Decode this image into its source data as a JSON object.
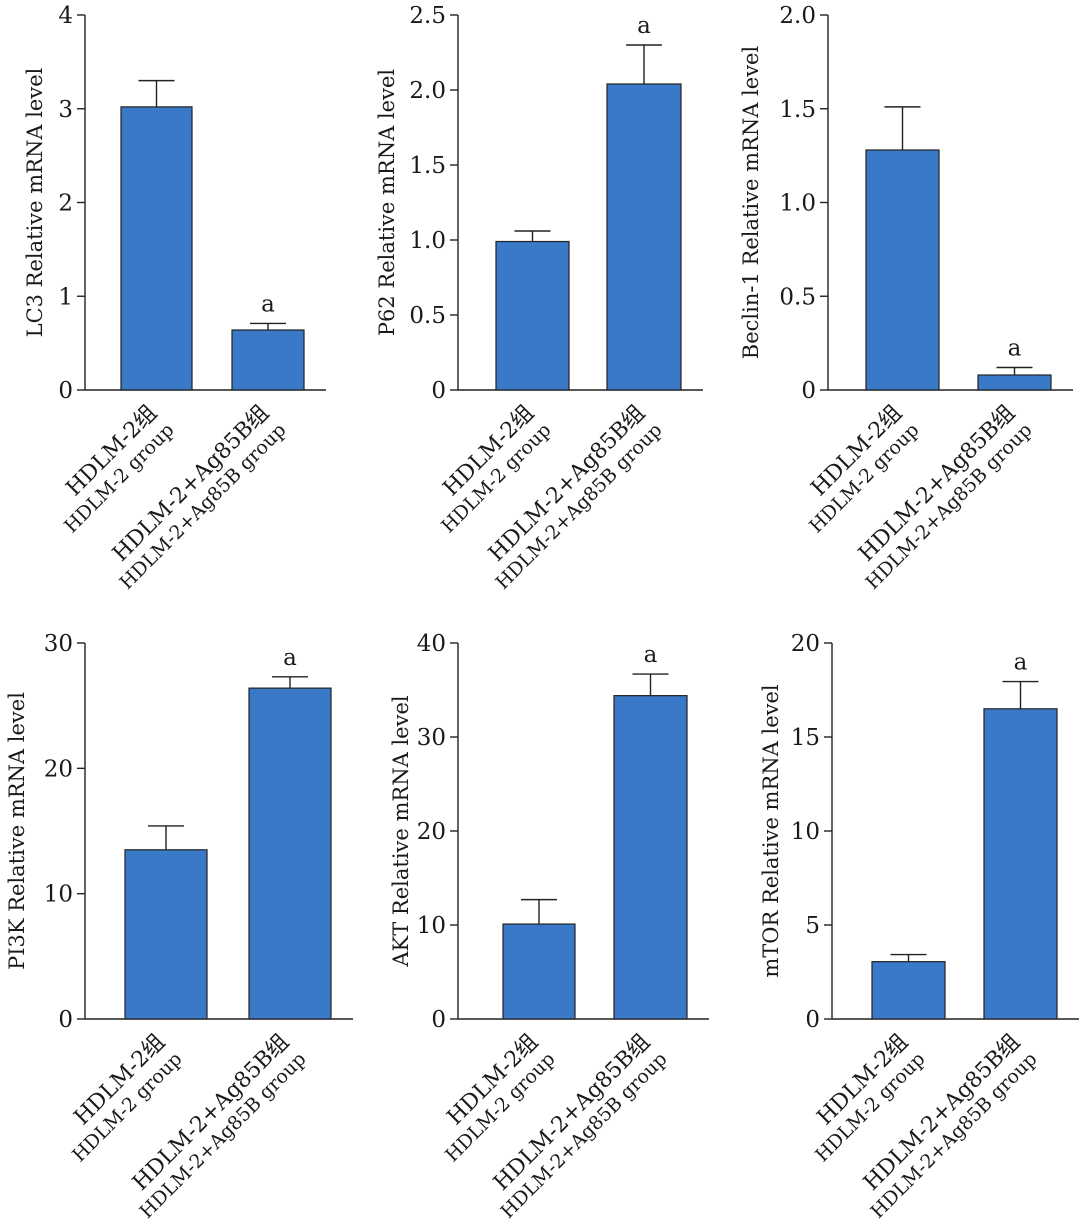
{
  "chart_data": [
    {
      "type": "bar",
      "ylabel": "LC3 Relative mRNA level",
      "ylim": [
        0,
        4
      ],
      "yticks": [
        "0",
        "1",
        "2",
        "3",
        "4"
      ],
      "categories": [
        {
          "line1": "HDLM-2组",
          "line2": "HDLM-2 group"
        },
        {
          "line1": "HDLM-2+Ag85B组",
          "line2": "HDLM-2+Ag85B group"
        }
      ],
      "values": [
        3.02,
        0.64
      ],
      "errors": [
        0.28,
        0.07
      ],
      "annotations": [
        "",
        "a"
      ]
    },
    {
      "type": "bar",
      "ylabel": "P62 Relative mRNA level",
      "ylim": [
        0,
        2.5
      ],
      "yticks": [
        "0",
        "0.5",
        "1.0",
        "1.5",
        "2.0",
        "2.5"
      ],
      "categories": [
        {
          "line1": "HDLM-2组",
          "line2": "HDLM-2 group"
        },
        {
          "line1": "HDLM-2+Ag85B组",
          "line2": "HDLM-2+Ag85B group"
        }
      ],
      "values": [
        0.99,
        2.04
      ],
      "errors": [
        0.07,
        0.26
      ],
      "annotations": [
        "",
        "a"
      ]
    },
    {
      "type": "bar",
      "ylabel": "Beclin-1 Relative mRNA level",
      "ylim": [
        0,
        2.0
      ],
      "yticks": [
        "0",
        "0.5",
        "1.0",
        "1.5",
        "2.0"
      ],
      "categories": [
        {
          "line1": "HDLM-2组",
          "line2": "HDLM-2 group"
        },
        {
          "line1": "HDLM-2+Ag85B组",
          "line2": "HDLM-2+Ag85B group"
        }
      ],
      "values": [
        1.28,
        0.08
      ],
      "errors": [
        0.23,
        0.04
      ],
      "annotations": [
        "",
        "a"
      ]
    },
    {
      "type": "bar",
      "ylabel": "PI3K Relative mRNA level",
      "ylim": [
        0,
        30
      ],
      "yticks": [
        "0",
        "10",
        "20",
        "30"
      ],
      "categories": [
        {
          "line1": "HDLM-2组",
          "line2": "HDLM-2 group"
        },
        {
          "line1": "HDLM-2+Ag85B组",
          "line2": "HDLM-2+Ag85B group"
        }
      ],
      "values": [
        13.5,
        26.4
      ],
      "errors": [
        1.9,
        0.9
      ],
      "annotations": [
        "",
        "a"
      ]
    },
    {
      "type": "bar",
      "ylabel": "AKT Relative mRNA level",
      "ylim": [
        0,
        40
      ],
      "yticks": [
        "0",
        "10",
        "20",
        "30",
        "40"
      ],
      "categories": [
        {
          "line1": "HDLM-2组",
          "line2": "HDLM-2 group"
        },
        {
          "line1": "HDLM-2+Ag85B组",
          "line2": "HDLM-2+Ag85B group"
        }
      ],
      "values": [
        10.1,
        34.4
      ],
      "errors": [
        2.6,
        2.3
      ],
      "annotations": [
        "",
        "a"
      ]
    },
    {
      "type": "bar",
      "ylabel": "mTOR Relative mRNA level",
      "ylim": [
        0,
        20
      ],
      "yticks": [
        "0",
        "5",
        "10",
        "15",
        "20"
      ],
      "categories": [
        {
          "line1": "HDLM-2组",
          "line2": "HDLM-2 group"
        },
        {
          "line1": "HDLM-2+Ag85B组",
          "line2": "HDLM-2+Ag85B group"
        }
      ],
      "values": [
        3.05,
        16.5
      ],
      "errors": [
        0.38,
        1.45
      ],
      "annotations": [
        "",
        "a"
      ]
    }
  ],
  "colors": {
    "bar_fill": "#3a78c8",
    "axis": "#222222"
  }
}
